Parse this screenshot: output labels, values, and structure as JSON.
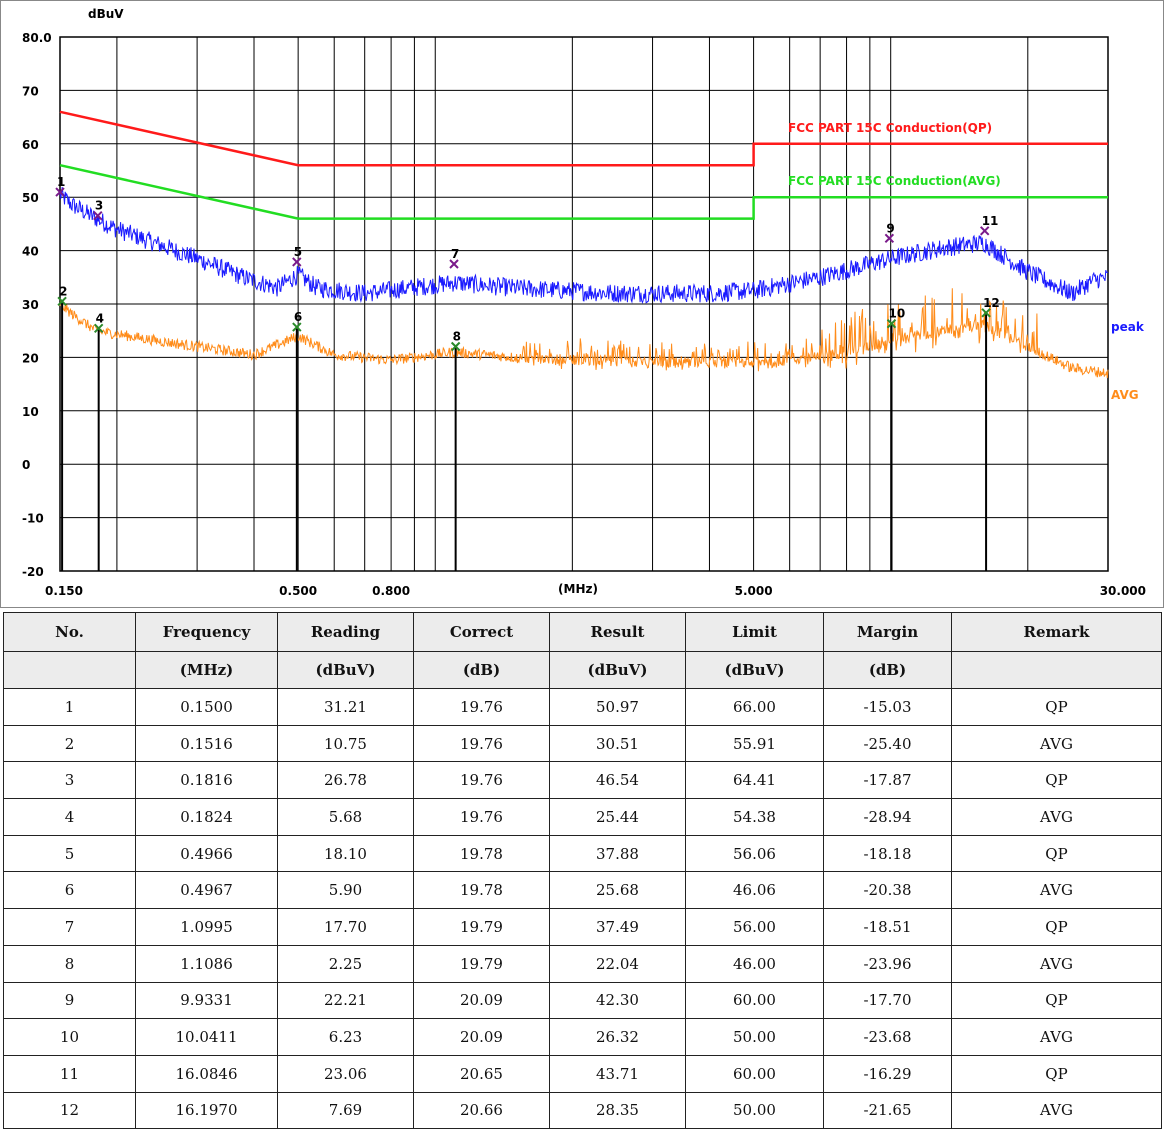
{
  "chart_data": {
    "type": "line",
    "xscale": "log",
    "xlim": [
      0.15,
      30.0
    ],
    "ylim": [
      -20,
      80
    ],
    "ylabel": "dBuV",
    "xlabel": "(MHz)",
    "grid": true,
    "y_ticks": [
      "80.0",
      "70",
      "60",
      "50",
      "40",
      "30",
      "20",
      "10",
      "0",
      "-10",
      "-20"
    ],
    "x_tick_labels": [
      {
        "value": 0.15,
        "label": "0.150"
      },
      {
        "value": 0.5,
        "label": "0.500"
      },
      {
        "value": 0.8,
        "label": "0.800"
      },
      {
        "value": 5.0,
        "label": "5.000"
      },
      {
        "value": 30.0,
        "label": "30.000"
      }
    ],
    "limits": [
      {
        "name": "FCC PART 15C  Conduction(QP)",
        "color": "#ff1a1a",
        "points": [
          [
            0.15,
            66.0
          ],
          [
            0.5,
            56.0
          ],
          [
            5.0,
            56.0
          ],
          [
            5.0,
            60.0
          ],
          [
            30.0,
            60.0
          ]
        ]
      },
      {
        "name": "FCC PART 15C  Conduction(AVG)",
        "color": "#22dd22",
        "points": [
          [
            0.15,
            56.0
          ],
          [
            0.5,
            46.0
          ],
          [
            5.0,
            46.0
          ],
          [
            5.0,
            50.0
          ],
          [
            30.0,
            50.0
          ]
        ]
      }
    ],
    "series": [
      {
        "name": "peak",
        "color": "#1a1aff",
        "profile": [
          [
            0.15,
            50.5
          ],
          [
            0.16,
            48.5
          ],
          [
            0.18,
            46.0
          ],
          [
            0.2,
            44.0
          ],
          [
            0.25,
            41.0
          ],
          [
            0.3,
            38.5
          ],
          [
            0.38,
            35.0
          ],
          [
            0.45,
            33.0
          ],
          [
            0.5,
            35.5
          ],
          [
            0.55,
            33.0
          ],
          [
            0.7,
            32.0
          ],
          [
            1.1,
            34.0
          ],
          [
            1.5,
            33.0
          ],
          [
            2.5,
            32.0
          ],
          [
            4.0,
            32.0
          ],
          [
            5.0,
            32.5
          ],
          [
            7.0,
            35.0
          ],
          [
            10.0,
            38.5
          ],
          [
            13.0,
            40.5
          ],
          [
            16.0,
            41.5
          ],
          [
            20.0,
            36.0
          ],
          [
            25.0,
            32.0
          ],
          [
            28.0,
            34.5
          ],
          [
            30.0,
            35.0
          ]
        ]
      },
      {
        "name": "AVG",
        "color": "#ff8c1a",
        "profile": [
          [
            0.15,
            30.0
          ],
          [
            0.16,
            28.0
          ],
          [
            0.18,
            25.0
          ],
          [
            0.25,
            23.0
          ],
          [
            0.4,
            20.5
          ],
          [
            0.5,
            24.0
          ],
          [
            0.6,
            20.5
          ],
          [
            0.8,
            19.5
          ],
          [
            1.1,
            21.0
          ],
          [
            1.5,
            20.0
          ],
          [
            3.0,
            19.0
          ],
          [
            5.0,
            19.0
          ],
          [
            7.0,
            20.0
          ],
          [
            10.0,
            23.0
          ],
          [
            13.0,
            25.0
          ],
          [
            16.0,
            26.0
          ],
          [
            20.0,
            22.0
          ],
          [
            25.0,
            18.0
          ],
          [
            30.0,
            17.0
          ]
        ]
      }
    ],
    "markers": [
      {
        "no": "1",
        "f": 0.15,
        "level": 50.97,
        "type": "QP"
      },
      {
        "no": "2",
        "f": 0.1516,
        "level": 30.51,
        "type": "AVG"
      },
      {
        "no": "3",
        "f": 0.1816,
        "level": 46.54,
        "type": "QP"
      },
      {
        "no": "4",
        "f": 0.1824,
        "level": 25.44,
        "type": "AVG"
      },
      {
        "no": "5",
        "f": 0.4966,
        "level": 37.88,
        "type": "QP"
      },
      {
        "no": "6",
        "f": 0.4967,
        "level": 25.68,
        "type": "AVG"
      },
      {
        "no": "7",
        "f": 1.0995,
        "level": 37.49,
        "type": "QP"
      },
      {
        "no": "8",
        "f": 1.1086,
        "level": 22.04,
        "type": "AVG"
      },
      {
        "no": "9",
        "f": 9.9331,
        "level": 42.3,
        "type": "QP"
      },
      {
        "no": "10",
        "f": 10.0411,
        "level": 26.32,
        "type": "AVG"
      },
      {
        "no": "11",
        "f": 16.0846,
        "level": 43.71,
        "type": "QP"
      },
      {
        "no": "12",
        "f": 16.197,
        "level": 28.35,
        "type": "AVG"
      }
    ]
  },
  "table": {
    "headers": [
      "No.",
      "Frequency",
      "Reading",
      "Correct",
      "Result",
      "Limit",
      "Margin",
      "Remark"
    ],
    "units": [
      "",
      "(MHz)",
      "(dBuV)",
      "(dB)",
      "(dBuV)",
      "(dBuV)",
      "(dB)",
      ""
    ],
    "rows": [
      [
        "1",
        "0.1500",
        "31.21",
        "19.76",
        "50.97",
        "66.00",
        "-15.03",
        "QP"
      ],
      [
        "2",
        "0.1516",
        "10.75",
        "19.76",
        "30.51",
        "55.91",
        "-25.40",
        "AVG"
      ],
      [
        "3",
        "0.1816",
        "26.78",
        "19.76",
        "46.54",
        "64.41",
        "-17.87",
        "QP"
      ],
      [
        "4",
        "0.1824",
        "5.68",
        "19.76",
        "25.44",
        "54.38",
        "-28.94",
        "AVG"
      ],
      [
        "5",
        "0.4966",
        "18.10",
        "19.78",
        "37.88",
        "56.06",
        "-18.18",
        "QP"
      ],
      [
        "6",
        "0.4967",
        "5.90",
        "19.78",
        "25.68",
        "46.06",
        "-20.38",
        "AVG"
      ],
      [
        "7",
        "1.0995",
        "17.70",
        "19.79",
        "37.49",
        "56.00",
        "-18.51",
        "QP"
      ],
      [
        "8",
        "1.1086",
        "2.25",
        "19.79",
        "22.04",
        "46.00",
        "-23.96",
        "AVG"
      ],
      [
        "9",
        "9.9331",
        "22.21",
        "20.09",
        "42.30",
        "60.00",
        "-17.70",
        "QP"
      ],
      [
        "10",
        "10.0411",
        "6.23",
        "20.09",
        "26.32",
        "50.00",
        "-23.68",
        "AVG"
      ],
      [
        "11",
        "16.0846",
        "23.06",
        "20.65",
        "43.71",
        "60.00",
        "-16.29",
        "QP"
      ],
      [
        "12",
        "16.1970",
        "7.69",
        "20.66",
        "28.35",
        "50.00",
        "-21.65",
        "AVG"
      ]
    ]
  }
}
